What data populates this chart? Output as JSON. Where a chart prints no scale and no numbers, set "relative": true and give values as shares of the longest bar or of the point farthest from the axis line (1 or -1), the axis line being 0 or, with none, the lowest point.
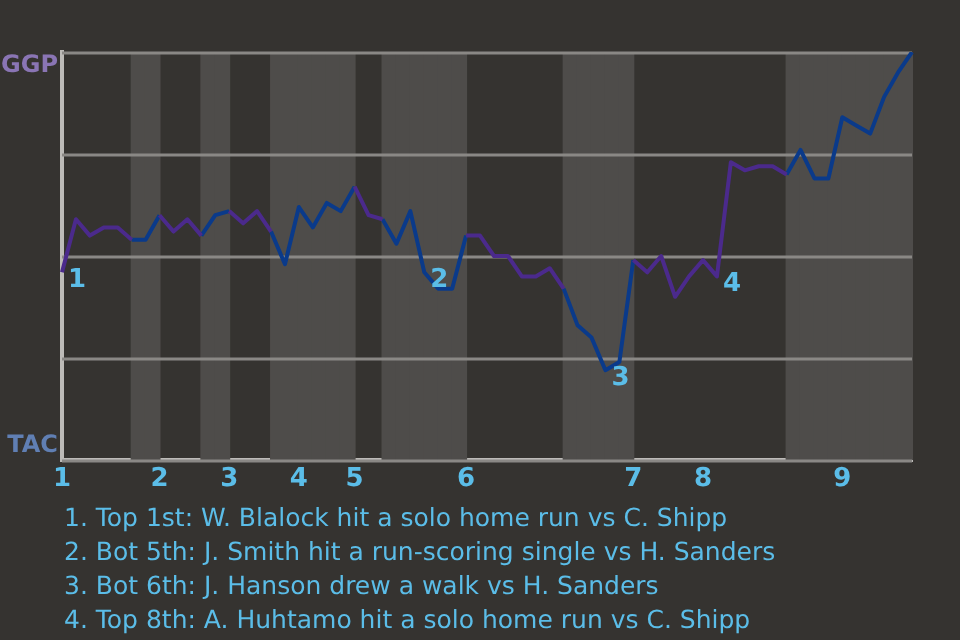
{
  "chart_data": {
    "type": "line",
    "relative": true,
    "categories": [
      "1",
      null,
      null,
      null,
      null,
      null,
      null,
      "2",
      null,
      null,
      null,
      null,
      "3",
      null,
      null,
      null,
      null,
      "4",
      null,
      null,
      null,
      "5",
      null,
      null,
      null,
      null,
      null,
      null,
      null,
      "6",
      null,
      null,
      null,
      null,
      null,
      null,
      null,
      null,
      null,
      null,
      null,
      "7",
      null,
      null,
      null,
      null,
      "8",
      null,
      null,
      null,
      null,
      null,
      null,
      null,
      null,
      null,
      "9",
      null,
      null,
      null,
      null,
      null
    ],
    "series": [
      {
        "color": "#4b2a8c",
        "values": [
          0.46,
          0.59,
          0.55,
          0.57,
          0.57,
          0.54,
          null,
          0.6,
          0.56,
          0.59,
          0.55,
          null,
          0.61,
          0.58,
          0.61,
          0.56,
          null,
          null,
          null,
          null,
          null,
          0.67,
          0.6,
          0.59,
          null,
          null,
          null,
          null,
          null,
          0.55,
          0.55,
          0.5,
          0.5,
          0.45,
          0.45,
          0.47,
          0.42,
          null,
          null,
          null,
          null,
          0.49,
          0.46,
          0.5,
          0.4,
          0.45,
          0.49,
          0.45,
          0.73,
          0.71,
          0.72,
          0.72,
          0.7,
          null,
          null,
          null,
          null,
          null,
          null,
          null,
          null,
          null
        ]
      },
      {
        "color": "#0a3a8a",
        "values": [
          null,
          null,
          null,
          null,
          null,
          0.54,
          0.54,
          0.6,
          null,
          null,
          0.55,
          0.6,
          0.61,
          null,
          null,
          0.56,
          0.48,
          0.62,
          0.57,
          0.63,
          0.61,
          0.67,
          null,
          0.59,
          0.53,
          0.61,
          0.46,
          0.42,
          0.42,
          0.55,
          null,
          null,
          null,
          null,
          null,
          null,
          0.42,
          0.33,
          0.3,
          0.22,
          0.24,
          0.49,
          null,
          null,
          null,
          null,
          null,
          null,
          null,
          null,
          null,
          null,
          0.7,
          0.76,
          0.69,
          0.69,
          0.84,
          0.82,
          0.8,
          0.89,
          0.95,
          1
        ]
      }
    ],
    "annotations": [
      "GGP",
      "TAC",
      "1",
      "2",
      "3",
      "4",
      "1. Top 1st: W. Blalock hit a solo home run vs C. Shipp",
      "2. Bot 5th: J. Smith hit a run-scoring single vs H. Sanders",
      "3. Bot 6th: J. Hanson drew a walk vs H. Sanders",
      "4. Top 8th: A. Huhtamo hit a solo home run vs C. Shipp"
    ],
    "grid": "y",
    "legend": false,
    "marker": "none",
    "line_style": "solid"
  }
}
